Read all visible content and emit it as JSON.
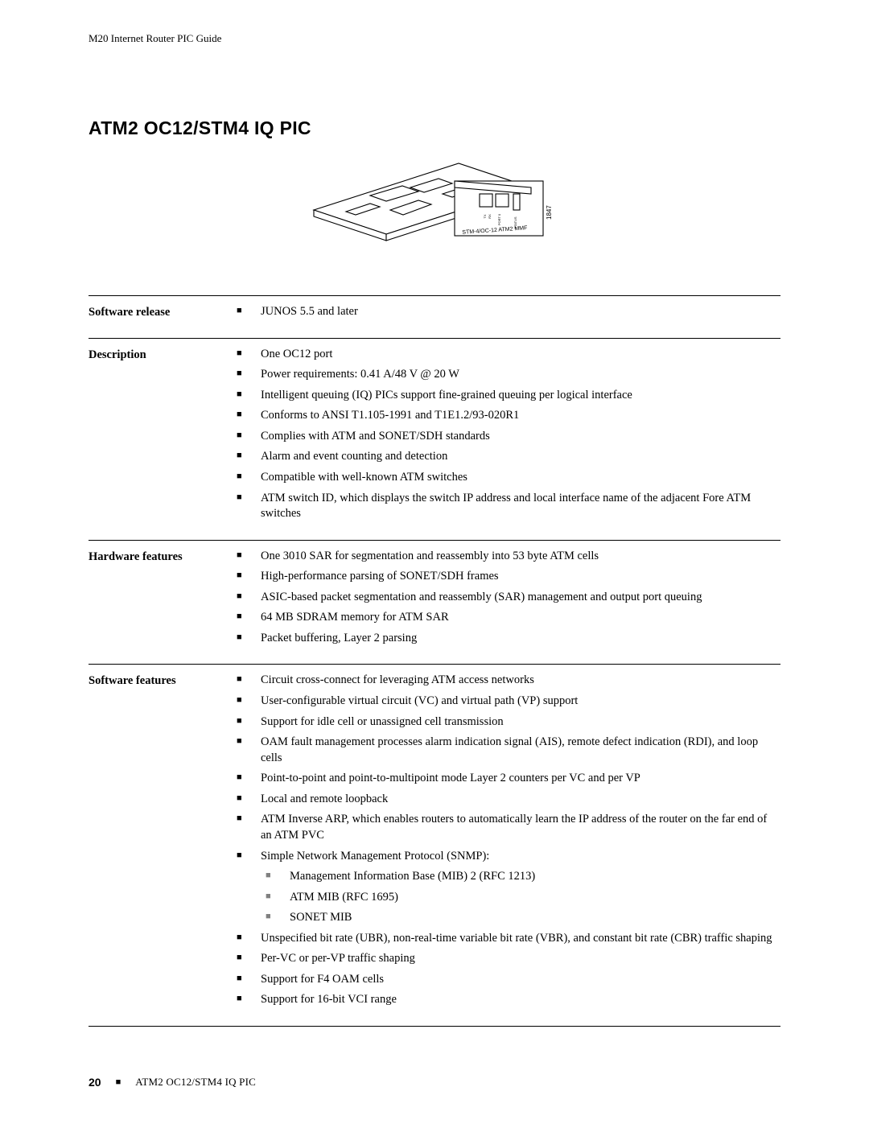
{
  "runningHeader": "M20 Internet Router PIC Guide",
  "sectionTitle": "ATM2 OC12/STM4 IQ PIC",
  "figure": {
    "faceplateLabel": "STM-4/OC-12 ATM2 MMF",
    "sideNumber": "1847",
    "smallLabels": [
      "TX",
      "RX",
      "PORT 0",
      "STATUS"
    ]
  },
  "rows": [
    {
      "label": "Software release",
      "items": [
        {
          "text": "JUNOS 5.5 and later"
        }
      ]
    },
    {
      "label": "Description",
      "items": [
        {
          "text": "One OC12 port"
        },
        {
          "text": "Power requirements: 0.41 A/48 V @ 20 W"
        },
        {
          "text": "Intelligent queuing (IQ) PICs support fine-grained queuing per logical interface"
        },
        {
          "text": "Conforms to ANSI T1.105-1991 and T1E1.2/93-020R1"
        },
        {
          "text": "Complies with ATM and SONET/SDH standards"
        },
        {
          "text": "Alarm and event counting and detection"
        },
        {
          "text": "Compatible with well-known ATM switches"
        },
        {
          "text": "ATM switch ID, which displays the switch IP address and local interface name of the adjacent Fore ATM switches"
        }
      ]
    },
    {
      "label": "Hardware features",
      "items": [
        {
          "text": "One 3010 SAR for segmentation and reassembly into 53 byte ATM cells"
        },
        {
          "text": "High-performance parsing of SONET/SDH frames"
        },
        {
          "text": "ASIC-based packet segmentation and reassembly (SAR) management and output port queuing"
        },
        {
          "text": "64 MB SDRAM memory for ATM SAR"
        },
        {
          "text": "Packet buffering, Layer 2 parsing"
        }
      ]
    },
    {
      "label": "Software features",
      "items": [
        {
          "text": "Circuit cross-connect for leveraging ATM access networks"
        },
        {
          "text": "User-configurable virtual circuit (VC) and virtual path (VP) support"
        },
        {
          "text": "Support for idle cell or unassigned cell transmission"
        },
        {
          "text": "OAM fault management processes alarm indication signal (AIS), remote defect indication (RDI), and loop cells"
        },
        {
          "text": "Point-to-point and point-to-multipoint mode Layer 2 counters per VC and per VP"
        },
        {
          "text": "Local and remote loopback"
        },
        {
          "text": "ATM Inverse ARP, which enables routers to automatically learn the IP address of the router on the far end of an ATM PVC"
        },
        {
          "text": "Simple Network Management Protocol (SNMP):",
          "sub": [
            "Management Information Base (MIB) 2 (RFC 1213)",
            "ATM MIB (RFC 1695)",
            "SONET MIB"
          ]
        },
        {
          "text": "Unspecified bit rate (UBR), non-real-time variable bit rate (VBR), and constant bit rate (CBR) traffic shaping"
        },
        {
          "text": "Per-VC or per-VP traffic shaping"
        },
        {
          "text": "Support for F4 OAM cells"
        },
        {
          "text": "Support for 16-bit VCI range"
        }
      ]
    }
  ],
  "footer": {
    "page": "20",
    "title": "ATM2 OC12/STM4 IQ PIC"
  }
}
